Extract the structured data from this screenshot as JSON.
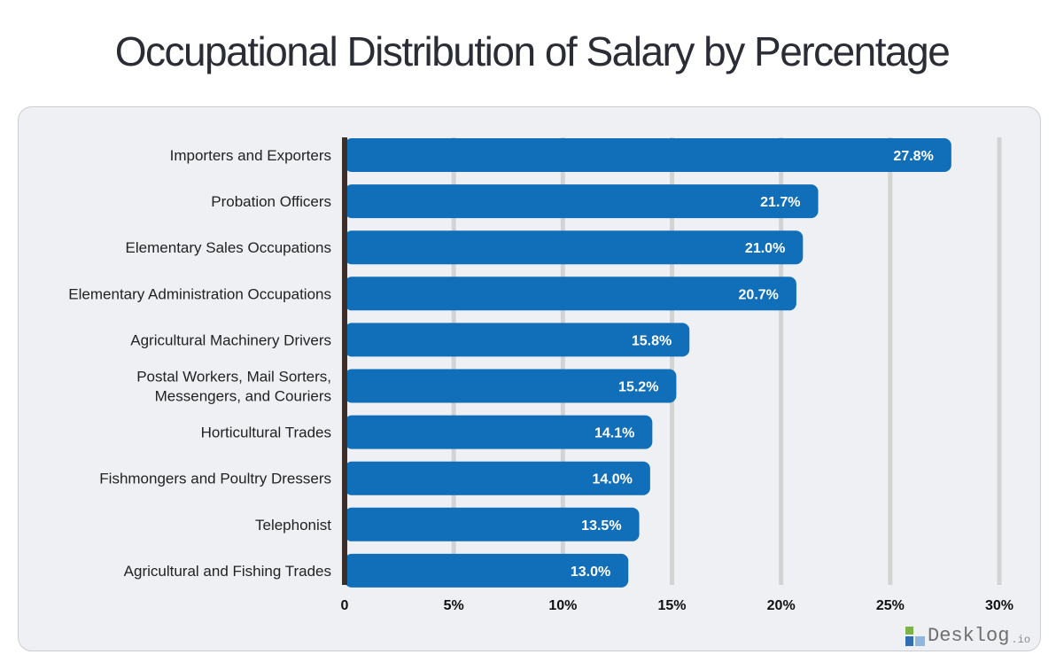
{
  "title": "Occupational Distribution of Salary by Percentage",
  "logo": {
    "name": "Desklog",
    "suffix": ".io"
  },
  "colors": {
    "bar": "#116fba",
    "axis": "#3a2f2a",
    "grid": "#d3d3d3",
    "panel": "#eef0f3"
  },
  "chart_data": {
    "type": "bar",
    "orientation": "horizontal",
    "title": "Occupational Distribution of Salary by Percentage",
    "xlabel": "",
    "ylabel": "",
    "xlim": [
      0,
      30
    ],
    "grid": true,
    "ticks": [
      0,
      5,
      10,
      15,
      20,
      25,
      30
    ],
    "tick_labels": [
      "0",
      "5%",
      "10%",
      "15%",
      "20%",
      "25%",
      "30%"
    ],
    "categories": [
      [
        "Importers and Exporters"
      ],
      [
        "Probation Officers"
      ],
      [
        "Elementary Sales Occupations"
      ],
      [
        "Elementary Administration Occupations"
      ],
      [
        "Agricultural Machinery Drivers"
      ],
      [
        "Postal Workers, Mail Sorters,",
        "Messengers, and Couriers"
      ],
      [
        "Horticultural Trades"
      ],
      [
        "Fishmongers and Poultry Dressers"
      ],
      [
        "Telephonist"
      ],
      [
        "Agricultural and Fishing Trades"
      ]
    ],
    "values": [
      27.8,
      21.7,
      21.0,
      20.7,
      15.8,
      15.2,
      14.1,
      14.0,
      13.5,
      13.0
    ],
    "value_labels": [
      "27.8%",
      "21.7%",
      "21.0%",
      "20.7%",
      "15.8%",
      "15.2%",
      "14.1%",
      "14.0%",
      "13.5%",
      "13.0%"
    ]
  }
}
